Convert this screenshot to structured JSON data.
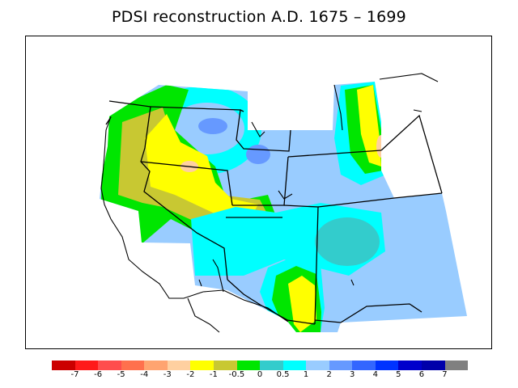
{
  "title": "PDSI reconstruction A.D. 1675 – 1699",
  "map": {
    "variable": "PDSI",
    "period": "A.D. 1675 – 1699",
    "region": "western United States",
    "regional_anomalies": [
      {
        "area": "Great Basin / central Nevada",
        "class": "-3 to -2"
      },
      {
        "area": "Sierra Nevada / northern California",
        "class": "-1 to -0.5"
      },
      {
        "area": "Pacific Northwest coast",
        "class": "-1 to -0.5"
      },
      {
        "area": "Wyoming / Colorado",
        "class": "1 to 2"
      },
      {
        "area": "New Mexico",
        "class": "1 to 2"
      },
      {
        "area": "Southern Arizona",
        "class": "-2 to -1"
      },
      {
        "area": "Eastern Montana",
        "class": "-2 to -1"
      },
      {
        "area": "Central Idaho",
        "class": "2 to 3"
      }
    ]
  },
  "colorbar": {
    "colors": [
      "#cc0000",
      "#ff1a1a",
      "#ff4d4d",
      "#ff704d",
      "#ffa470",
      "#ffd0a0",
      "#ffff00",
      "#c8c832",
      "#00e600",
      "#33cccc",
      "#00ffff",
      "#99ccff",
      "#6699ff",
      "#3366ff",
      "#0033ff",
      "#0000cc",
      "#0000aa",
      "#808080"
    ],
    "labels": [
      "-7",
      "-6",
      "-5",
      "-4",
      "-3",
      "-2",
      "-1",
      "-0.5",
      "0",
      "0.5",
      "1",
      "2",
      "3",
      "4",
      "5",
      "6",
      "7"
    ]
  }
}
